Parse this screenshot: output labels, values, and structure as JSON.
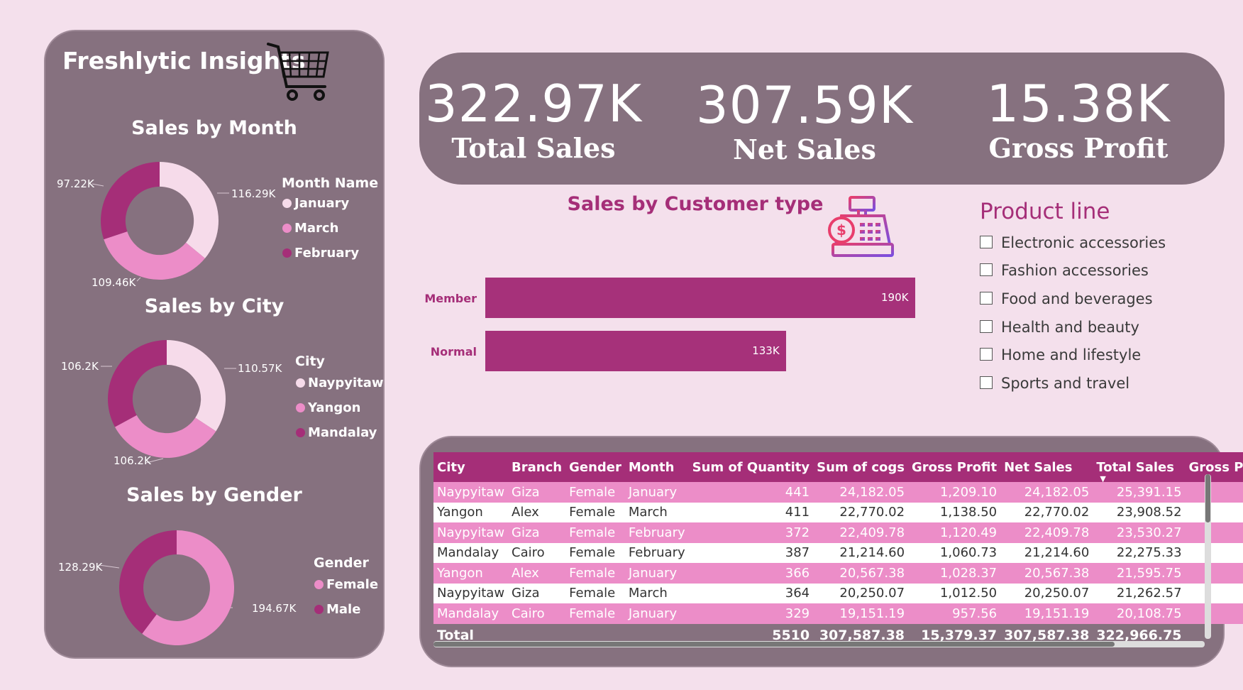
{
  "app": {
    "title": "Freshlytic Insights",
    "icon": "shopping-cart-icon"
  },
  "colors": {
    "background": "#f4e0ec",
    "panel": "#86717f",
    "accent": "#a52e78",
    "light_pink": "#f6dbea",
    "mid_pink": "#ec8dc8",
    "dark_pink": "#a52e78"
  },
  "kpis": [
    {
      "value": "322.97K",
      "label": "Total Sales"
    },
    {
      "value": "307.59K",
      "label": "Net Sales"
    },
    {
      "value": "15.38K",
      "label": "Gross Profit"
    }
  ],
  "donuts": {
    "month": {
      "title": "Sales by Month",
      "legend_title": "Month Name",
      "labels": [
        "116.29K",
        "109.46K",
        "97.22K"
      ]
    },
    "city": {
      "title": "Sales by City",
      "legend_title": "City",
      "labels": [
        "110.57K",
        "106.2K",
        "106.2K"
      ]
    },
    "gender": {
      "title": "Sales by Gender",
      "legend_title": "Gender",
      "labels": [
        "194.67K",
        "128.29K"
      ]
    }
  },
  "bar": {
    "title": "Sales by Customer type",
    "icon": "cash-register-icon",
    "labels": [
      "190K",
      "133K"
    ]
  },
  "slicer": {
    "title": "Product line",
    "items": [
      "Electronic accessories",
      "Fashion accessories",
      "Food and beverages",
      "Health and beauty",
      "Home and lifestyle",
      "Sports and travel"
    ]
  },
  "table": {
    "headers": [
      "City",
      "Branch",
      "Gender",
      "Month",
      "Sum of Quantity",
      "Sum of cogs",
      "Gross Profit",
      "Net Sales",
      "Total Sales",
      "Gross Pro"
    ],
    "rows": [
      [
        "Naypyitaw",
        "Giza",
        "Female",
        "January",
        "441",
        "24,182.05",
        "1,209.10",
        "24,182.05",
        "25,391.15",
        ""
      ],
      [
        "Yangon",
        "Alex",
        "Female",
        "March",
        "411",
        "22,770.02",
        "1,138.50",
        "22,770.02",
        "23,908.52",
        ""
      ],
      [
        "Naypyitaw",
        "Giza",
        "Female",
        "February",
        "372",
        "22,409.78",
        "1,120.49",
        "22,409.78",
        "23,530.27",
        ""
      ],
      [
        "Mandalay",
        "Cairo",
        "Female",
        "February",
        "387",
        "21,214.60",
        "1,060.73",
        "21,214.60",
        "22,275.33",
        ""
      ],
      [
        "Yangon",
        "Alex",
        "Female",
        "January",
        "366",
        "20,567.38",
        "1,028.37",
        "20,567.38",
        "21,595.75",
        ""
      ],
      [
        "Naypyitaw",
        "Giza",
        "Female",
        "March",
        "364",
        "20,250.07",
        "1,012.50",
        "20,250.07",
        "21,262.57",
        ""
      ],
      [
        "Mandalay",
        "Cairo",
        "Female",
        "January",
        "329",
        "19,151.19",
        "957.56",
        "19,151.19",
        "20,108.75",
        ""
      ]
    ],
    "total": [
      "Total",
      "",
      "",
      "",
      "5510",
      "307,587.38",
      "15,379.37",
      "307,587.38",
      "322,966.75",
      ""
    ]
  },
  "chart_data": [
    {
      "type": "pie",
      "title": "Sales by Month",
      "legend_title": "Month Name",
      "categories": [
        "January",
        "March",
        "February"
      ],
      "values": [
        116.29,
        109.46,
        97.22
      ],
      "value_labels": [
        "116.29K",
        "109.46K",
        "97.22K"
      ],
      "colors": [
        "#f6dbea",
        "#ec8dc8",
        "#a52e78"
      ],
      "legend": "right"
    },
    {
      "type": "pie",
      "title": "Sales by City",
      "legend_title": "City",
      "categories": [
        "Naypyitaw",
        "Yangon",
        "Mandalay"
      ],
      "values": [
        110.57,
        106.2,
        106.2
      ],
      "value_labels": [
        "110.57K",
        "106.2K",
        "106.2K"
      ],
      "colors": [
        "#f6dbea",
        "#ec8dc8",
        "#a52e78"
      ],
      "legend": "right"
    },
    {
      "type": "pie",
      "title": "Sales by Gender",
      "legend_title": "Gender",
      "categories": [
        "Female",
        "Male"
      ],
      "values": [
        194.67,
        128.29
      ],
      "value_labels": [
        "194.67K",
        "128.29K"
      ],
      "colors": [
        "#ec8dc8",
        "#a52e78"
      ],
      "legend": "right"
    },
    {
      "type": "bar",
      "orientation": "horizontal",
      "title": "Sales by Customer type",
      "categories": [
        "Member",
        "Normal"
      ],
      "values": [
        190,
        133
      ],
      "value_labels": [
        "190K",
        "133K"
      ],
      "color": "#a6317a"
    }
  ]
}
